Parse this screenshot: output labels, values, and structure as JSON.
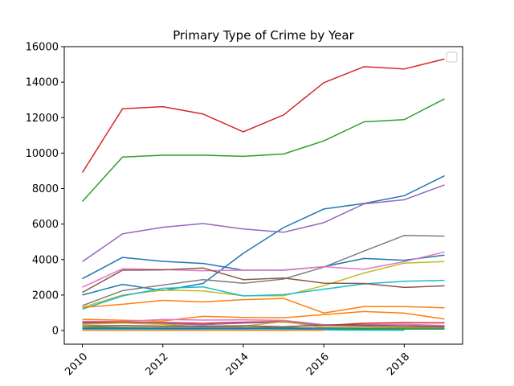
{
  "chart_data": {
    "type": "line",
    "title": "Primary Type of Crime by Year",
    "xlabel": "",
    "ylabel": "",
    "xlim": [
      2009.55,
      2019.45
    ],
    "ylim": [
      -770,
      16000
    ],
    "x_ticks": [
      "2010",
      "2012",
      "2014",
      "2016",
      "2018"
    ],
    "y_ticks": [
      "0",
      "2000",
      "4000",
      "6000",
      "8000",
      "10000",
      "12000",
      "14000",
      "16000"
    ],
    "grid": false,
    "legend": "top-right",
    "x": [
      2010,
      2011,
      2012,
      2013,
      2014,
      2015,
      2016,
      2017,
      2018,
      2019
    ],
    "series": [
      {
        "color": "#d62728",
        "values": [
          8900,
          12500,
          12620,
          12200,
          11200,
          12150,
          13970,
          14870,
          14740,
          15300
        ]
      },
      {
        "color": "#2ca02c",
        "values": [
          7270,
          9780,
          9880,
          9880,
          9820,
          9950,
          10690,
          11760,
          11890,
          13060
        ]
      },
      {
        "color": "#1f77b4",
        "values": [
          2920,
          4120,
          3900,
          3780,
          3400,
          3400,
          3600,
          4060,
          3960,
          4250
        ]
      },
      {
        "color": "#1f77b4",
        "values": [
          2000,
          2600,
          2250,
          2650,
          4350,
          5800,
          6850,
          7160,
          7600,
          8720
        ]
      },
      {
        "color": "#9467bd",
        "values": [
          3880,
          5450,
          5820,
          6030,
          5720,
          5540,
          6080,
          7140,
          7370,
          8210
        ]
      },
      {
        "color": "#7f7f7f",
        "values": [
          1400,
          2250,
          2560,
          2870,
          2660,
          2900,
          3570,
          4480,
          5360,
          5320
        ]
      },
      {
        "color": "#e377c2",
        "values": [
          2440,
          3480,
          3440,
          3370,
          3400,
          3420,
          3590,
          3450,
          3880,
          4430
        ]
      },
      {
        "color": "#bcbd22",
        "values": [
          1300,
          2000,
          2280,
          2230,
          1960,
          1960,
          2530,
          3240,
          3800,
          3890
        ]
      },
      {
        "color": "#17becf",
        "values": [
          1200,
          1950,
          2380,
          2460,
          1950,
          2020,
          2330,
          2630,
          2780,
          2830
        ]
      },
      {
        "color": "#8c564b",
        "values": [
          2150,
          3400,
          3420,
          3520,
          2870,
          2960,
          2670,
          2650,
          2430,
          2520
        ]
      },
      {
        "color": "#ff7f0e",
        "values": [
          1300,
          1480,
          1700,
          1610,
          1740,
          1810,
          990,
          1350,
          1350,
          1280
        ]
      },
      {
        "color": "#ff7f0e",
        "values": [
          630,
          580,
          540,
          800,
          740,
          720,
          900,
          1070,
          980,
          650
        ]
      },
      {
        "color": "#e377c2",
        "values": [
          520,
          510,
          620,
          590,
          600,
          570,
          330,
          330,
          350,
          280
        ]
      },
      {
        "color": "#d62728",
        "values": [
          460,
          470,
          450,
          410,
          470,
          510,
          280,
          410,
          440,
          430
        ]
      },
      {
        "color": "#9467bd",
        "values": [
          390,
          430,
          390,
          330,
          420,
          470,
          290,
          260,
          270,
          240
        ]
      },
      {
        "color": "#bcbd22",
        "values": [
          350,
          420,
          350,
          200,
          250,
          500,
          180,
          190,
          190,
          220
        ]
      },
      {
        "color": "#8c564b",
        "values": [
          270,
          280,
          250,
          250,
          270,
          220,
          310,
          310,
          260,
          220
        ]
      },
      {
        "color": "#7f7f7f",
        "values": [
          230,
          180,
          170,
          190,
          170,
          170,
          150,
          120,
          140,
          140
        ]
      },
      {
        "color": "#2ca02c",
        "values": [
          150,
          140,
          110,
          110,
          120,
          100,
          90,
          100,
          80,
          80
        ]
      },
      {
        "color": "#1f77b4",
        "values": [
          100,
          110,
          100,
          120,
          110,
          140,
          70,
          40,
          30,
          null
        ]
      },
      {
        "color": "#17becf",
        "values": [
          60,
          60,
          50,
          30,
          40,
          40,
          30,
          20,
          20,
          null
        ]
      },
      {
        "color": "#ff7f0e",
        "values": [
          20,
          10,
          15,
          10,
          15,
          10,
          10,
          null,
          null,
          null
        ]
      }
    ]
  }
}
